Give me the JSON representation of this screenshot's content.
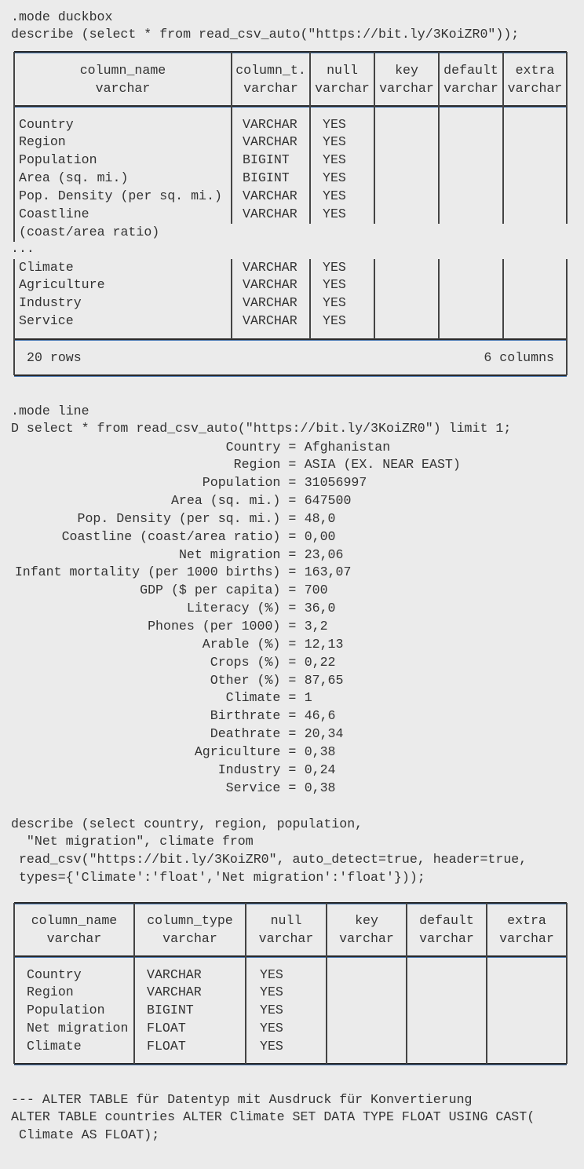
{
  "block1": {
    "lines": [
      ".mode duckbox",
      "describe (select * from read_csv_auto(\"https://bit.ly/3KoiZR0\"));"
    ]
  },
  "table1": {
    "headers": [
      [
        "column_name",
        "varchar"
      ],
      [
        "column_t.",
        "varchar"
      ],
      [
        "null",
        "varchar"
      ],
      [
        "key",
        "varchar"
      ],
      [
        "default",
        "varchar"
      ],
      [
        "extra",
        "varchar"
      ]
    ],
    "rows_top": [
      [
        "Country",
        "VARCHAR",
        "YES"
      ],
      [
        "Region",
        "VARCHAR",
        "YES"
      ],
      [
        "Population",
        "BIGINT",
        "YES"
      ],
      [
        "Area (sq. mi.)",
        "BIGINT",
        "YES"
      ],
      [
        "Pop. Density (per sq. mi.)",
        "VARCHAR",
        "YES"
      ],
      [
        "Coastline",
        "VARCHAR",
        "YES"
      ]
    ],
    "wrap": "(coast/area ratio)",
    "ellipsis": "...",
    "rows_bottom": [
      [
        "Climate",
        "VARCHAR",
        "YES"
      ],
      [
        "Agriculture",
        "VARCHAR",
        "YES"
      ],
      [
        "Industry",
        "VARCHAR",
        "YES"
      ],
      [
        "Service",
        "VARCHAR",
        "YES"
      ]
    ],
    "footer_rows": "20 rows",
    "footer_cols": "6 columns"
  },
  "block2": {
    "lines": [
      ".mode line",
      "D select * from read_csv_auto(\"https://bit.ly/3KoiZR0\") limit 1;"
    ],
    "record": [
      [
        "Country",
        "Afghanistan"
      ],
      [
        "Region",
        "ASIA (EX. NEAR EAST)"
      ],
      [
        "Population",
        "31056997"
      ],
      [
        "Area (sq. mi.)",
        "647500"
      ],
      [
        "Pop. Density (per sq. mi.)",
        "48,0"
      ],
      [
        "Coastline (coast/area ratio)",
        "0,00"
      ],
      [
        "Net migration",
        "23,06"
      ],
      [
        "Infant mortality (per 1000 births)",
        "163,07"
      ],
      [
        "GDP ($ per capita)",
        "700"
      ],
      [
        "Literacy (%)",
        "36,0"
      ],
      [
        "Phones (per 1000)",
        "3,2"
      ],
      [
        "Arable (%)",
        "12,13"
      ],
      [
        "Crops (%)",
        "0,22"
      ],
      [
        "Other (%)",
        "87,65"
      ],
      [
        "Climate",
        "1"
      ],
      [
        "Birthrate",
        "46,6"
      ],
      [
        "Deathrate",
        "20,34"
      ],
      [
        "Agriculture",
        "0,38"
      ],
      [
        "Industry",
        "0,24"
      ],
      [
        "Service",
        "0,38"
      ]
    ]
  },
  "block3": {
    "lines": [
      "describe (select country, region, population,",
      "  \"Net migration\", climate from",
      " read_csv(\"https://bit.ly/3KoiZR0\", auto_detect=true, header=true,",
      " types={'Climate':'float','Net migration':'float'}));"
    ]
  },
  "table2": {
    "headers": [
      [
        "column_name",
        "varchar"
      ],
      [
        "column_type",
        "varchar"
      ],
      [
        "null",
        "varchar"
      ],
      [
        "key",
        "varchar"
      ],
      [
        "default",
        "varchar"
      ],
      [
        "extra",
        "varchar"
      ]
    ],
    "rows": [
      [
        "Country",
        "VARCHAR",
        "YES"
      ],
      [
        "Region",
        "VARCHAR",
        "YES"
      ],
      [
        "Population",
        "BIGINT",
        "YES"
      ],
      [
        "Net migration",
        "FLOAT",
        "YES"
      ],
      [
        "Climate",
        "FLOAT",
        "YES"
      ]
    ]
  },
  "block4": {
    "lines": [
      "--- ALTER TABLE für Datentyp mit Ausdruck für Konvertierung",
      "ALTER TABLE countries ALTER Climate SET DATA TYPE FLOAT USING CAST(",
      " Climate AS FLOAT);"
    ]
  }
}
